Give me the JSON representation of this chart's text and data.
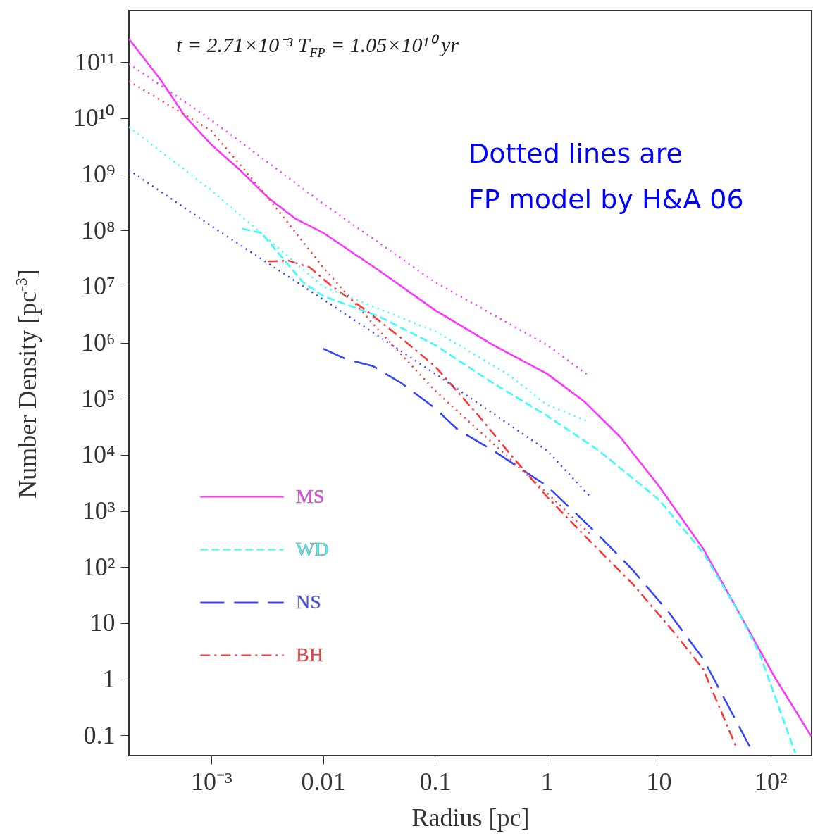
{
  "chart_data": {
    "type": "line",
    "xlabel": "Radius [pc]",
    "ylabel": "Number Density [pc$^{-3}$]",
    "log": "xy",
    "grid": false,
    "legend": "bottom left",
    "xlim": [
      0.000184,
      232
    ],
    "ylim": [
      0.0436,
      830000000000
    ],
    "xticks": [
      {
        "value": 0.001,
        "label": "10⁻³"
      },
      0.01,
      0.1,
      1,
      10,
      {
        "value": 100,
        "label": "10²"
      }
    ],
    "yticks": [
      0.1,
      1,
      10,
      {
        "value": 100,
        "label": "10²"
      },
      {
        "value": 1000,
        "label": "10³"
      },
      {
        "value": 10000,
        "label": "10⁴"
      },
      {
        "value": 100000,
        "label": "10⁵"
      },
      {
        "value": 1000000,
        "label": "10⁶"
      },
      {
        "value": 10000000,
        "label": "10⁷"
      },
      {
        "value": 100000000,
        "label": "10⁸"
      },
      {
        "value": 1000000000,
        "label": "10⁹"
      },
      {
        "value": 10000000000,
        "label": "10¹⁰"
      },
      {
        "value": 100000000000,
        "label": "10¹¹"
      }
    ],
    "annotations": [
      "t = 2.71×10⁻³ T$_{FP}$ = 1.05×10¹⁰ yr",
      "Dotted lines are",
      "FP model by H&A 06"
    ],
    "series": [
      {
        "name": "MS",
        "color": "#ff33ff",
        "line_style": "solid",
        "x": [
          0.000184,
          0.00036,
          0.00058,
          0.001,
          0.0018,
          0.0032,
          0.0057,
          0.01,
          0.032,
          0.1,
          0.33,
          1,
          2.15,
          4.5,
          10,
          25,
          52,
          107,
          229
        ],
        "values": [
          260000000000,
          46000000000,
          11000000000,
          3400000000,
          1200000000,
          390000000,
          160000000,
          91000000,
          19000000,
          3800000,
          910000,
          280000,
          90000,
          21000,
          2800,
          210,
          15.5,
          1.15,
          0.098
        ]
      },
      {
        "name": "WD",
        "color": "#33ffff",
        "line_style": "dashed",
        "x": [
          0.0019,
          0.0028,
          0.0043,
          0.0066,
          0.01,
          0.032,
          0.1,
          0.33,
          1,
          2.9,
          10,
          25,
          52,
          80,
          166
        ],
        "values": [
          107000000,
          91000000,
          33000000,
          12000000,
          6800000,
          2900000,
          910000,
          190000,
          50000,
          12000,
          1600,
          180,
          15.5,
          2.8,
          0.048
        ]
      },
      {
        "name": "NS",
        "color": "#3344ff",
        "line_style": "dashed",
        "x": [
          0.01,
          0.016,
          0.028,
          0.05,
          0.1,
          0.16,
          0.33,
          1,
          2.9,
          5.9,
          12.3,
          25,
          65
        ],
        "values": [
          780000,
          510000,
          380000,
          190000,
          68000,
          28000,
          12000,
          2800,
          370,
          87,
          15.5,
          2.3,
          0.063
        ]
      },
      {
        "name": "BH",
        "color": "#ff3333",
        "line_style": "dashed",
        "x": [
          0.0032,
          0.0049,
          0.0076,
          0.0117,
          0.024,
          0.05,
          0.1,
          0.245,
          0.5,
          1,
          2.15,
          5.9,
          14,
          25,
          49
        ],
        "values": [
          28000000,
          29000000,
          22000000,
          10500000,
          3800000,
          1200000,
          380000,
          50000,
          8900,
          1800,
          370,
          49,
          6.5,
          1.5,
          0.063
        ]
      },
      {
        "color": "#ff33ff",
        "line_style": "dotted",
        "x": [
          0.000184,
          0.001,
          0.01,
          0.1,
          1,
          2.3
        ],
        "values": [
          94000000000,
          9300000000,
          300000000,
          12000000,
          910000,
          270000
        ]
      },
      {
        "color": "#33ffff",
        "line_style": "dotted",
        "x": [
          0.000184,
          0.001,
          0.01,
          0.1,
          0.44,
          1,
          2.3
        ],
        "values": [
          7000000000,
          520000000,
          10000000,
          1600000,
          280000,
          78000,
          40000
        ]
      },
      {
        "color": "#3344ff",
        "line_style": "dotted",
        "x": [
          0.000184,
          0.001,
          0.01,
          0.1,
          1,
          2.5
        ],
        "values": [
          1200000000,
          120000000,
          5900000,
          280000,
          12000,
          1700
        ]
      },
      {
        "color": "#ff3333",
        "line_style": "dotted",
        "x": [
          0.000184,
          0.001,
          0.0032,
          0.01,
          0.032,
          0.1,
          0.33,
          1,
          2.5
        ],
        "values": [
          46000000000,
          6000000000,
          390000000,
          22000000,
          1600000,
          140000,
          16000,
          2100,
          370
        ]
      }
    ]
  }
}
